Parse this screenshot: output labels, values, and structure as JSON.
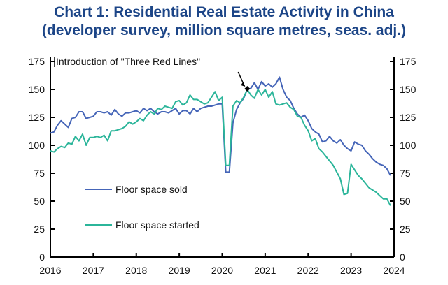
{
  "title": "Chart 1: Residential Real Estate Activity in China",
  "subtitle": "(developer survey, million square metres, seas. adj.)",
  "chart_data": {
    "type": "line",
    "title": "Chart 1: Residential Real Estate Activity in China",
    "subtitle": "(developer survey, million square metres, seas. adj.)",
    "xlabel": "",
    "ylabel": "",
    "xlim": [
      "2016-01",
      "2024-01"
    ],
    "ylim": [
      0,
      175
    ],
    "x_ticks": [
      "2016",
      "2017",
      "2018",
      "2019",
      "2020",
      "2021",
      "2022",
      "2023",
      "2024"
    ],
    "y_ticks": [
      0,
      25,
      50,
      75,
      100,
      125,
      150,
      175
    ],
    "y_axis_both_sides": true,
    "grid": false,
    "legend_placement": "bottom-left",
    "annotation": {
      "text": "Introduction of \"Three Red Lines\"",
      "date": "2020-08",
      "value": 150
    },
    "x": [
      "2016-01",
      "2016-02",
      "2016-03",
      "2016-04",
      "2016-05",
      "2016-06",
      "2016-07",
      "2016-08",
      "2016-09",
      "2016-10",
      "2016-11",
      "2016-12",
      "2017-01",
      "2017-02",
      "2017-03",
      "2017-04",
      "2017-05",
      "2017-06",
      "2017-07",
      "2017-08",
      "2017-09",
      "2017-10",
      "2017-11",
      "2017-12",
      "2018-01",
      "2018-02",
      "2018-03",
      "2018-04",
      "2018-05",
      "2018-06",
      "2018-07",
      "2018-08",
      "2018-09",
      "2018-10",
      "2018-11",
      "2018-12",
      "2019-01",
      "2019-02",
      "2019-03",
      "2019-04",
      "2019-05",
      "2019-06",
      "2019-07",
      "2019-08",
      "2019-09",
      "2019-10",
      "2019-11",
      "2019-12",
      "2020-01",
      "2020-02",
      "2020-03",
      "2020-04",
      "2020-05",
      "2020-06",
      "2020-07",
      "2020-08",
      "2020-09",
      "2020-10",
      "2020-11",
      "2020-12",
      "2021-01",
      "2021-02",
      "2021-03",
      "2021-04",
      "2021-05",
      "2021-06",
      "2021-07",
      "2021-08",
      "2021-09",
      "2021-10",
      "2021-11",
      "2021-12",
      "2022-01",
      "2022-02",
      "2022-03",
      "2022-04",
      "2022-05",
      "2022-06",
      "2022-07",
      "2022-08",
      "2022-09",
      "2022-10",
      "2022-11",
      "2022-12",
      "2023-01",
      "2023-02",
      "2023-03",
      "2023-04",
      "2023-05",
      "2023-06",
      "2023-07",
      "2023-08",
      "2023-09",
      "2023-10",
      "2023-11",
      "2023-12"
    ],
    "series": [
      {
        "name": "Floor space sold",
        "color": "#4565b8",
        "values": [
          111,
          112,
          118,
          122,
          119,
          116,
          124,
          125,
          130,
          130,
          124,
          125,
          126,
          130,
          130,
          129,
          130,
          127,
          132,
          128,
          126,
          129,
          129,
          130,
          131,
          129,
          133,
          131,
          133,
          130,
          128,
          130,
          130,
          129,
          131,
          133,
          128,
          131,
          131,
          128,
          133,
          130,
          133,
          134,
          135,
          135,
          136,
          137,
          137,
          76,
          76,
          120,
          132,
          138,
          142,
          150,
          151,
          156,
          150,
          157,
          153,
          155,
          152,
          155,
          161,
          150,
          143,
          140,
          133,
          128,
          125,
          127,
          122,
          115,
          112,
          110,
          103,
          104,
          108,
          104,
          102,
          105,
          100,
          97,
          95,
          103,
          101,
          100,
          95,
          92,
          88,
          85,
          83,
          82,
          79,
          73
        ]
      },
      {
        "name": "Floor space started",
        "color": "#2bb59a",
        "values": [
          95,
          94,
          97,
          99,
          98,
          102,
          101,
          108,
          104,
          110,
          100,
          107,
          107,
          108,
          107,
          109,
          104,
          113,
          113,
          114,
          115,
          117,
          121,
          119,
          121,
          124,
          122,
          127,
          130,
          128,
          133,
          132,
          135,
          134,
          133,
          139,
          140,
          136,
          138,
          145,
          141,
          141,
          139,
          137,
          138,
          143,
          148,
          140,
          143,
          82,
          82,
          135,
          140,
          138,
          143,
          150,
          145,
          142,
          150,
          145,
          150,
          143,
          148,
          137,
          136,
          137,
          138,
          134,
          132,
          126,
          125,
          118,
          113,
          104,
          106,
          97,
          94,
          90,
          86,
          82,
          76,
          70,
          56,
          57,
          83,
          78,
          73,
          70,
          66,
          62,
          60,
          58,
          55,
          52,
          52,
          46
        ]
      }
    ]
  }
}
